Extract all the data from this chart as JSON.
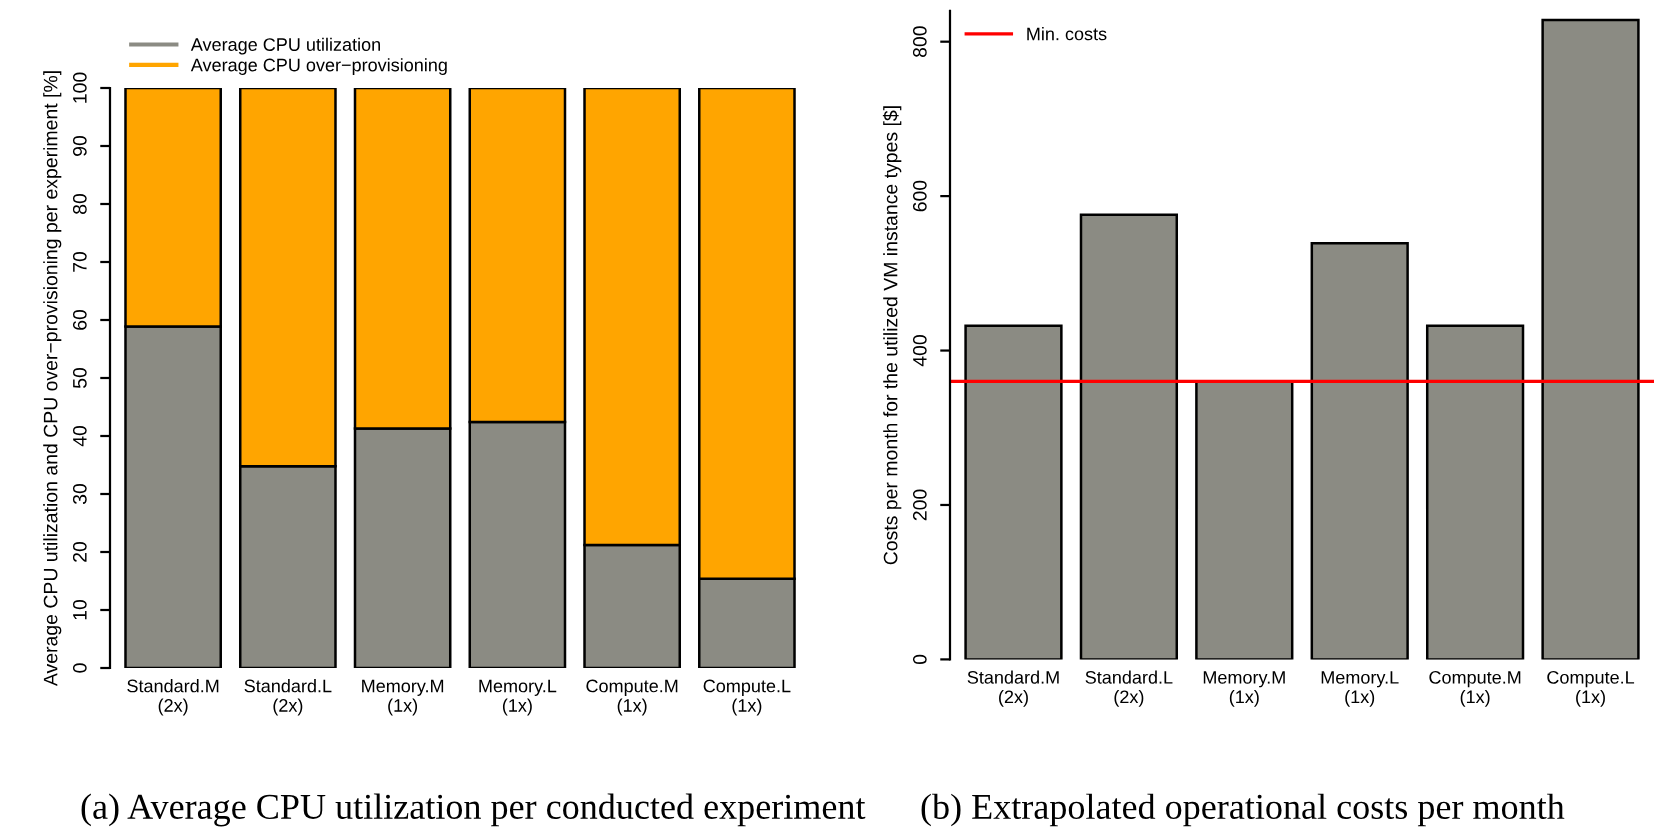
{
  "chart_data": [
    {
      "type": "bar",
      "stacked": true,
      "categories": [
        "Standard.M\n(2x)",
        "Standard.L\n(2x)",
        "Memory.M\n(1x)",
        "Memory.L\n(1x)",
        "Compute.M\n(1x)",
        "Compute.L\n(1x)"
      ],
      "series": [
        {
          "name": "Average CPU utilization",
          "color": "#8b8b83",
          "values": [
            58.9,
            34.8,
            41.3,
            42.4,
            21.2,
            15.4
          ]
        },
        {
          "name": "Average CPU over−provisioning",
          "color": "#ffa500",
          "values": [
            41.1,
            65.2,
            58.7,
            57.6,
            78.8,
            84.6
          ]
        }
      ],
      "ylabel": "Average CPU utilization and CPU over−provisioning per experiment [%]",
      "ylim": [
        0,
        100
      ],
      "yticks": [
        0,
        10,
        20,
        30,
        40,
        50,
        60,
        70,
        80,
        90,
        100
      ],
      "legend": "top",
      "grid": false,
      "annotations": [
        "(a) Average CPU utilization per conducted experiment"
      ]
    },
    {
      "type": "bar",
      "categories": [
        "Standard.M\n(2x)",
        "Standard.L\n(2x)",
        "Memory.M\n(1x)",
        "Memory.L\n(1x)",
        "Compute.M\n(1x)",
        "Compute.L\n(1x)"
      ],
      "series": [
        {
          "color": "#8b8b83",
          "values": [
            432,
            576,
            360,
            539,
            432,
            828
          ]
        }
      ],
      "ylabel": "Costs per month for the utilized VM instance types [$]",
      "ylim": [
        0,
        840
      ],
      "yticks": [
        0,
        200,
        400,
        600,
        800
      ],
      "ref_lines": [
        {
          "axis": "y",
          "value": 360,
          "label": "Min. costs",
          "color": "#ff0000"
        }
      ],
      "legend": "top left",
      "grid": false,
      "annotations": [
        "(b) Extrapolated operational costs per month"
      ]
    }
  ]
}
